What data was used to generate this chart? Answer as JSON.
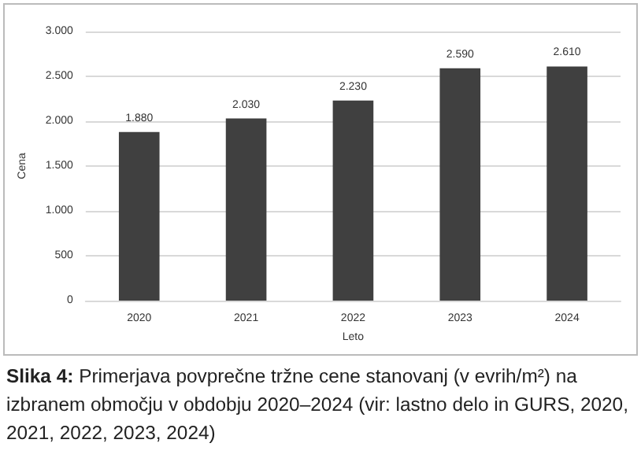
{
  "chart_data": {
    "type": "bar",
    "xlabel": "Leto",
    "ylabel": "Cena",
    "categories": [
      "2020",
      "2021",
      "2022",
      "2023",
      "2024"
    ],
    "values": [
      1880,
      2030,
      2230,
      2590,
      2610
    ],
    "color": "#404040",
    "ylim": [
      0,
      3000
    ],
    "yticks": [
      0,
      500,
      {
        "value": 1000,
        "label": "1.000"
      },
      {
        "value": 1500,
        "label": "1.500"
      },
      {
        "value": 2000,
        "label": "2.000"
      },
      {
        "value": 2500,
        "label": "2.500"
      },
      {
        "value": 3000,
        "label": "3.000"
      }
    ],
    "grid": "y",
    "value_labels": [
      "1.880",
      "2.030",
      "2.230",
      "2.590",
      "2.610"
    ],
    "annotations": [
      "Slika 4: Primerjava povprečne tržne cene stanovanj (v evrih/m²) na izbranem območju v obdobju 2020–2024 (vir: lastno delo in GURS, 2020, 2021, 2022, 2023, 2024)"
    ]
  }
}
